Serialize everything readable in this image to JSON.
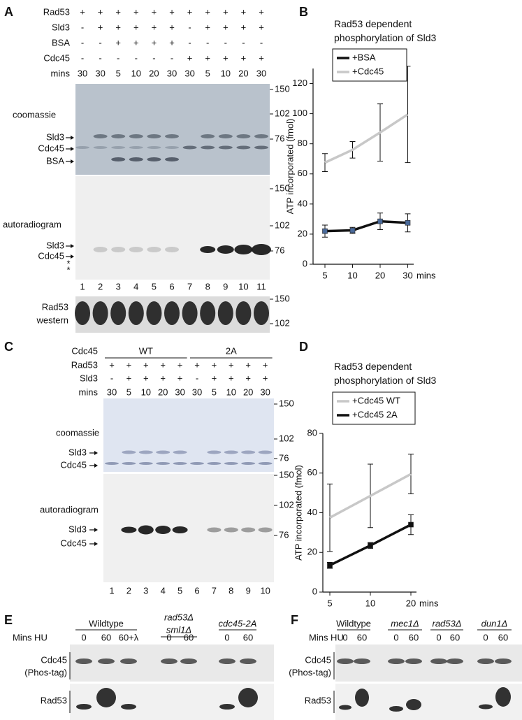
{
  "panel_labels": [
    "A",
    "B",
    "C",
    "D",
    "E",
    "F"
  ],
  "gel_a": {
    "conditions": [
      {
        "name": "Rad53",
        "marks": [
          "+",
          "+",
          "+",
          "+",
          "+",
          "+",
          "+",
          "+",
          "+",
          "+",
          "+"
        ]
      },
      {
        "name": "Sld3",
        "marks": [
          "-",
          "+",
          "+",
          "+",
          "+",
          "+",
          "-",
          "+",
          "+",
          "+",
          "+"
        ]
      },
      {
        "name": "BSA",
        "marks": [
          "-",
          "-",
          "+",
          "+",
          "+",
          "+",
          "-",
          "-",
          "-",
          "-",
          "-"
        ]
      },
      {
        "name": "Cdc45",
        "marks": [
          "-",
          "-",
          "-",
          "-",
          "-",
          "-",
          "+",
          "+",
          "+",
          "+",
          "+"
        ]
      },
      {
        "name": "mins",
        "marks": [
          30,
          30,
          5,
          10,
          20,
          30,
          30,
          5,
          10,
          20,
          30
        ]
      }
    ],
    "coomassie": {
      "label": "coomassie",
      "markers": [
        150,
        102,
        76
      ],
      "bands": [
        "Sld3",
        "Cdc45",
        "BSA"
      ]
    },
    "autoradiogram": {
      "label": "autoradiogram",
      "markers": [
        150,
        102,
        76
      ],
      "bands": [
        "Sld3",
        "Cdc45"
      ],
      "asterisks": [
        "*",
        "*"
      ]
    },
    "lanes": [
      1,
      2,
      3,
      4,
      5,
      6,
      7,
      8,
      9,
      10,
      11
    ],
    "western": {
      "label": [
        "Rad53",
        "western"
      ],
      "markers": [
        150,
        102
      ]
    }
  },
  "gel_c": {
    "groups": {
      "name": "Cdc45",
      "labels": [
        "WT",
        "2A"
      ]
    },
    "conditions": [
      {
        "name": "Rad53",
        "marks": [
          "+",
          "+",
          "+",
          "+",
          "+",
          "+",
          "+",
          "+",
          "+",
          "+"
        ]
      },
      {
        "name": "Sld3",
        "marks": [
          "-",
          "+",
          "+",
          "+",
          "+",
          "-",
          "+",
          "+",
          "+",
          "+"
        ]
      },
      {
        "name": "mins",
        "marks": [
          30,
          5,
          10,
          20,
          30,
          30,
          5,
          10,
          20,
          30
        ]
      }
    ],
    "coomassie": {
      "label": "coomassie",
      "markers": [
        150,
        102,
        76
      ],
      "bands": [
        "Sld3",
        "Cdc45"
      ]
    },
    "autoradiogram": {
      "label": "autoradiogram",
      "markers": [
        150,
        102,
        76
      ],
      "bands": [
        "Sld3",
        "Cdc45"
      ]
    },
    "lanes": [
      1,
      2,
      3,
      4,
      5,
      6,
      7,
      8,
      9,
      10
    ]
  },
  "blots_e": {
    "mins_label": "Mins HU",
    "groups": [
      {
        "name": [
          "Wildtype"
        ],
        "mins": [
          "0",
          "60",
          "60+λ"
        ]
      },
      {
        "name": [
          "rad53Δ",
          "sml1Δ"
        ],
        "mins": [
          "0",
          "60"
        ]
      },
      {
        "name": [
          "cdc45-2A"
        ],
        "mins": [
          "0",
          "60"
        ]
      }
    ],
    "blots": [
      [
        "Cdc45",
        "(Phos-tag)"
      ],
      [
        "Rad53"
      ]
    ]
  },
  "blots_f": {
    "mins_label": "Mins HU",
    "groups": [
      {
        "name": [
          "Wildtype"
        ],
        "mins": [
          "0",
          "60"
        ]
      },
      {
        "name": [
          "mec1Δ"
        ],
        "mins": [
          "0",
          "60"
        ]
      },
      {
        "name": [
          "rad53Δ"
        ],
        "mins": [
          "0",
          "60"
        ]
      },
      {
        "name": [
          "dun1Δ"
        ],
        "mins": [
          "0",
          "60"
        ]
      }
    ],
    "blots": [
      [
        "Cdc45",
        "(Phos-tag)"
      ],
      [
        "Rad53"
      ]
    ]
  },
  "chart_data": [
    {
      "type": "line",
      "title": "Rad53 dependent phosphorylation of Sld3",
      "categories": [
        5,
        10,
        20,
        30
      ],
      "x_label": "mins",
      "y_label": "ATP incorporated (fmol)",
      "ylim": [
        0,
        130
      ],
      "yticks": [
        0,
        20,
        40,
        60,
        80,
        100,
        120
      ],
      "legend": "upper left",
      "series": [
        {
          "name": "+BSA",
          "color": "#111111",
          "marker_color": "#4a6a9a",
          "values": [
            22,
            22.5,
            28.5,
            27.5
          ],
          "errors": [
            4,
            2,
            5.5,
            6
          ]
        },
        {
          "name": "+Cdc45",
          "color": "#c8c8c8",
          "values": [
            67.5,
            76,
            87.5,
            99.5
          ],
          "errors": [
            6,
            5.5,
            19,
            32
          ]
        }
      ]
    },
    {
      "type": "line",
      "title": "Rad53 dependent phosphorylation of Sld3",
      "categories": [
        5,
        10,
        20
      ],
      "x_label": "mins",
      "y_label": "ATP incorporated (fmol)",
      "ylim": [
        0,
        80
      ],
      "yticks": [
        0,
        20,
        40,
        60,
        80
      ],
      "legend": "upper left",
      "series": [
        {
          "name": "+Cdc45 WT",
          "color": "#c8c8c8",
          "values": [
            37.5,
            48.5,
            59.5
          ],
          "errors": [
            17,
            16,
            10
          ]
        },
        {
          "name": "+Cdc45 2A",
          "color": "#111111",
          "marker_color": "#111111",
          "values": [
            13.5,
            23.5,
            34
          ],
          "errors": [
            1.5,
            1.5,
            5
          ]
        }
      ]
    }
  ]
}
